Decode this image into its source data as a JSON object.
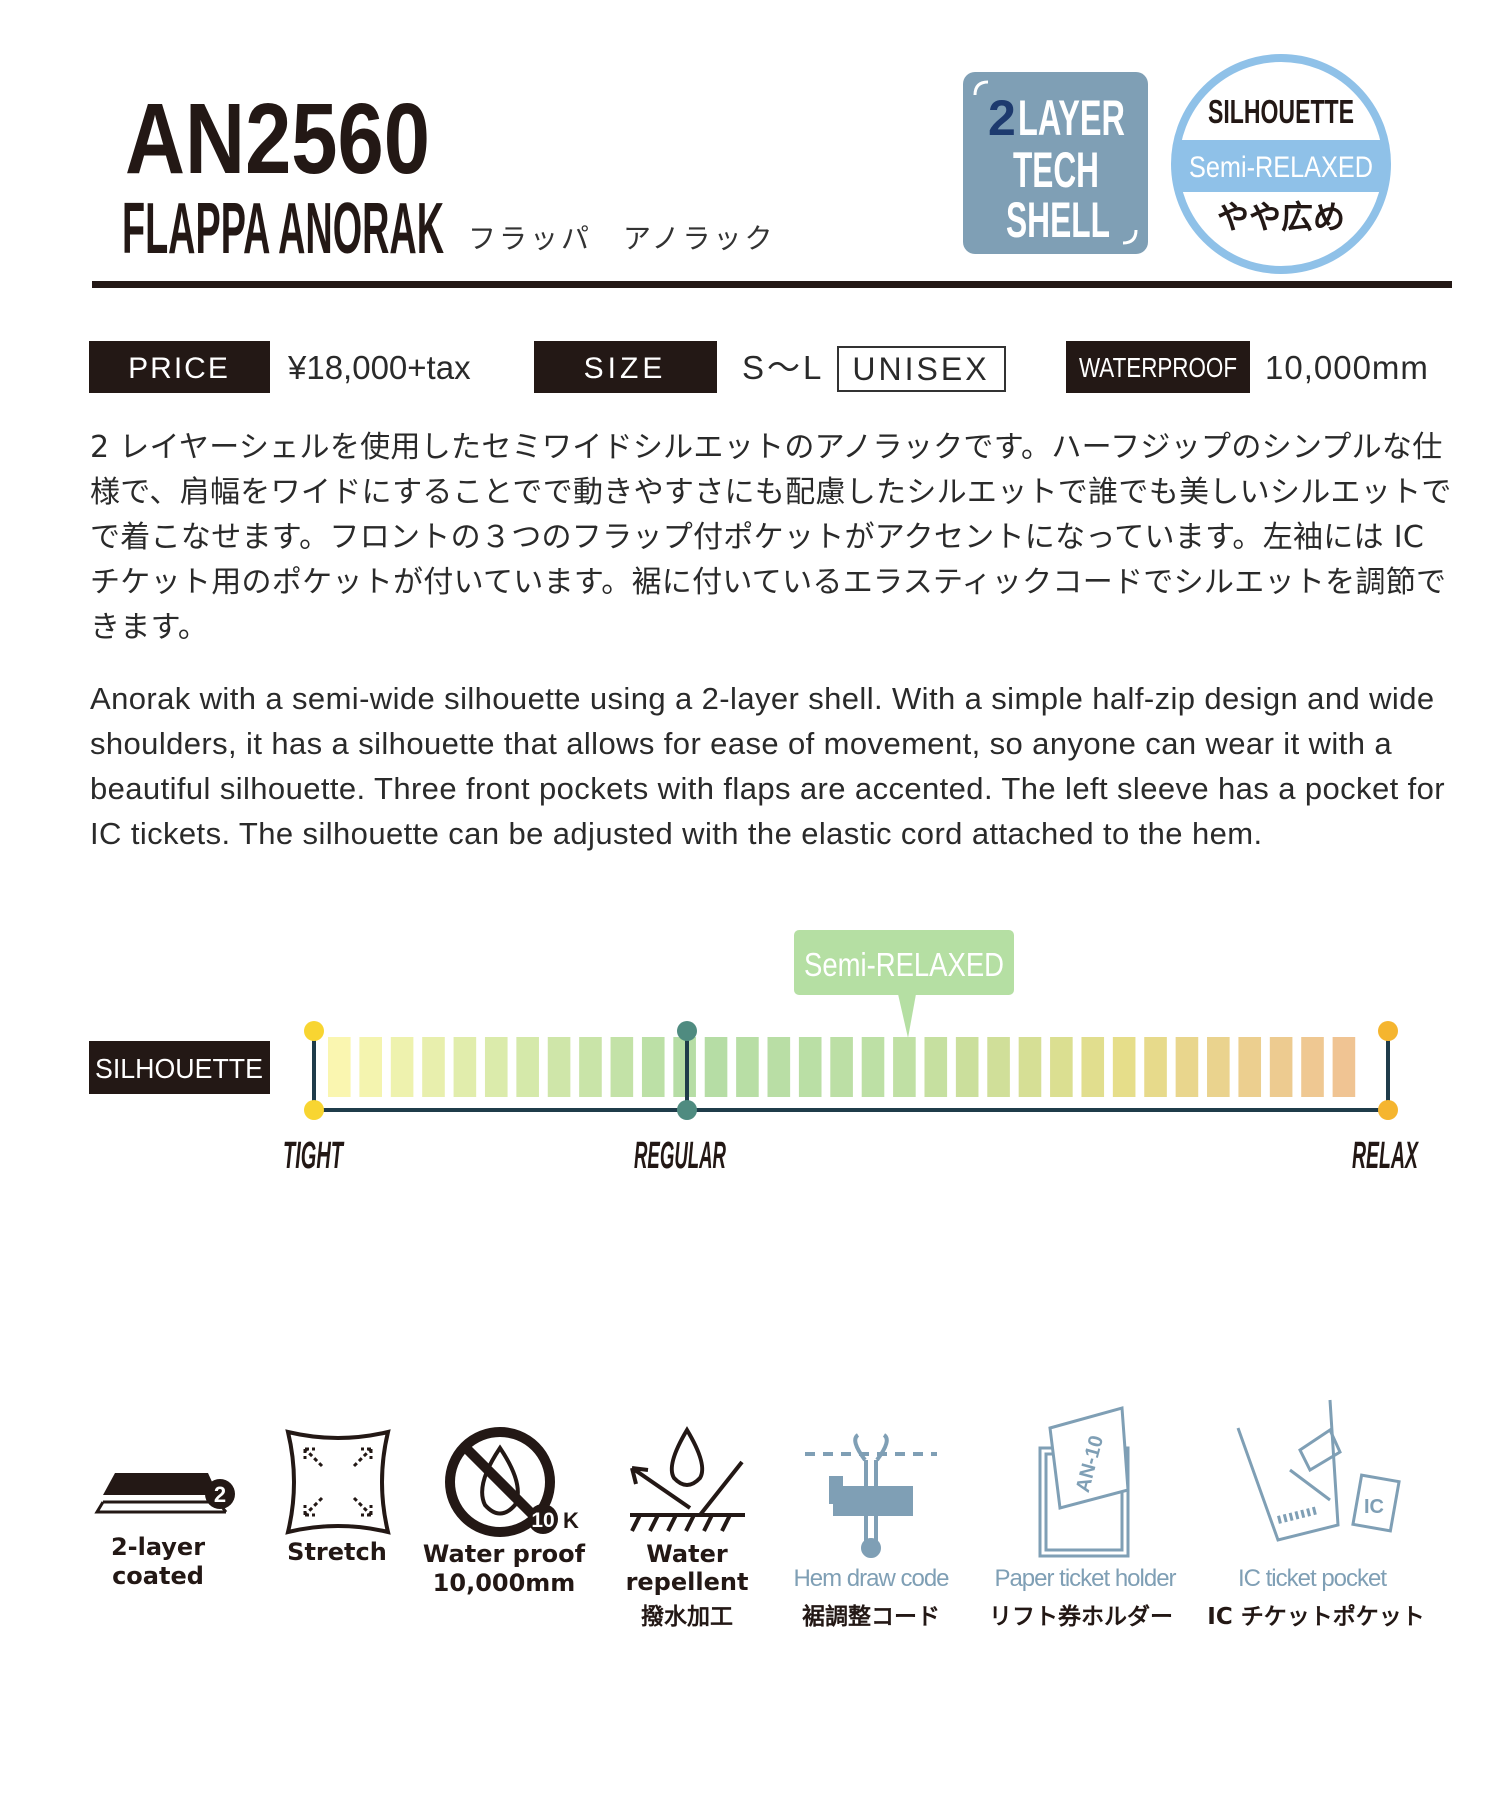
{
  "header": {
    "code": "AN2560",
    "name": "FLAPPA ANORAK",
    "name_ja": "フラッパ　アノラック"
  },
  "badges": {
    "tech": {
      "number": "2",
      "lines": [
        "LAYER",
        "TECH",
        "SHELL"
      ]
    },
    "silhouette": {
      "title": "SILHOUETTE",
      "fit": "Semi-RELAXED",
      "fit_ja": "やや広め"
    }
  },
  "specs": {
    "price": {
      "label": "PRICE",
      "value": "¥18,000+tax"
    },
    "size": {
      "label": "SIZE",
      "value": "S〜L",
      "tag": "UNISEX"
    },
    "waterproof": {
      "label": "WATERPROOF",
      "value": "10,000mm"
    }
  },
  "description_ja": "2 レイヤーシェルを使用したセミワイドシルエットのアノラックです。ハーフジップのシンプルな仕様で、肩幅をワイドにすることでで動きやすさにも配慮したシルエットで誰でも美しいシルエットでで着こなせます。フロントの３つのフラップ付ポケットがアクセントになっています。左袖には IC チケット用のポケットが付いています。裾に付いているエラスティックコードでシルエットを調節できます。",
  "description_en": "Anorak with a semi-wide silhouette using a 2-layer shell. With a simple half-zip design and wide shoulders, it has a silhouette that allows for ease of movement, so anyone can wear it with a beautiful silhouette. Three front pockets with flaps are accented. The left sleeve has a pocket for IC tickets. The silhouette can be adjusted with the elastic cord attached to the hem.",
  "silhouette_scale": {
    "label": "SILHOUETTE",
    "marker": "Semi-RELAXED",
    "ends": [
      "TIGHT",
      "REGULAR",
      "RELAX"
    ]
  },
  "features": [
    {
      "label": [
        "2-layer",
        "coated"
      ],
      "icon_text": [
        "2"
      ]
    },
    {
      "label": [
        "Stretch"
      ]
    },
    {
      "label": [
        "Water proof",
        "10,000mm"
      ],
      "icon_text": [
        "10",
        "K"
      ]
    },
    {
      "label": [
        "Water",
        "repellent"
      ],
      "label_ja": "撥水加工"
    },
    {
      "label": [
        "Hem draw code"
      ],
      "label_ja": "裾調整コード"
    },
    {
      "label": [
        "Paper ticket holder"
      ],
      "label_ja": "リフト券ホルダー",
      "icon_text": [
        "AN-10"
      ]
    },
    {
      "label": [
        "IC ticket pocket"
      ],
      "label_ja": "IC チケットポケット",
      "icon_text": [
        "IC"
      ]
    }
  ]
}
